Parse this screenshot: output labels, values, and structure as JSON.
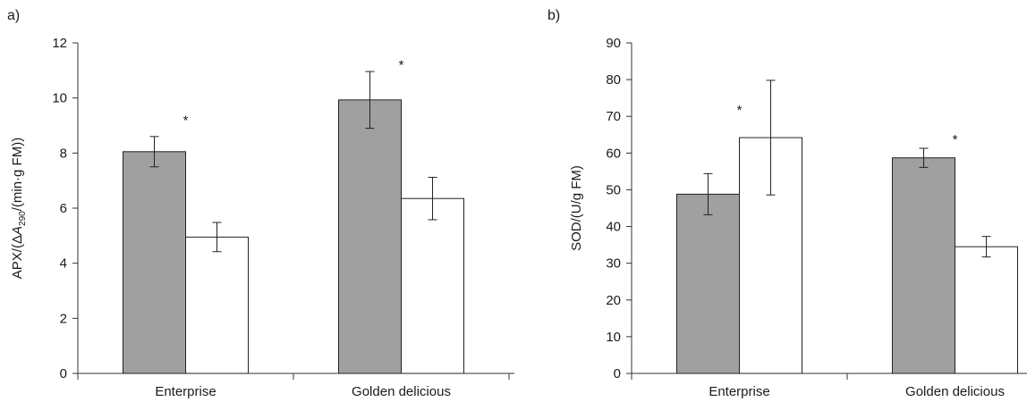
{
  "chart_data": [
    {
      "type": "bar",
      "panel_label": "a)",
      "ylabel_prefix": "APX/(Δ",
      "ylabel_var": "A",
      "ylabel_sub": "290",
      "ylabel_suffix": "/(min·g FM))",
      "categories": [
        "Enterprise",
        "Golden delicious"
      ],
      "series": [
        {
          "values": [
            8.05,
            9.93
          ],
          "errors": [
            0.55,
            1.03
          ],
          "color": "#a0a0a0"
        },
        {
          "values": [
            4.95,
            6.35
          ],
          "errors": [
            0.53,
            0.77
          ],
          "color": "#ffffff"
        }
      ],
      "ylim": [
        0,
        12
      ],
      "yticks": [
        0,
        2,
        4,
        6,
        8,
        10,
        12
      ],
      "significance": [
        {
          "category": 0,
          "value": 9.3,
          "label": "*"
        },
        {
          "category": 1,
          "value": 11.3,
          "label": "*"
        }
      ],
      "grid": false
    },
    {
      "type": "bar",
      "panel_label": "b)",
      "ylabel_prefix": "SOD/(U/g FM)",
      "ylabel_var": "",
      "ylabel_sub": "",
      "ylabel_suffix": "",
      "categories": [
        "Enterprise",
        "Golden delicious"
      ],
      "series": [
        {
          "values": [
            48.8,
            58.7
          ],
          "errors": [
            5.6,
            2.6
          ],
          "color": "#a0a0a0"
        },
        {
          "values": [
            64.2,
            34.5
          ],
          "errors": [
            15.6,
            2.8
          ],
          "color": "#ffffff"
        }
      ],
      "ylim": [
        0,
        90
      ],
      "yticks": [
        0,
        10,
        20,
        30,
        40,
        50,
        60,
        70,
        80,
        90
      ],
      "significance": [
        {
          "category": 0,
          "value": 72.5,
          "label": "*"
        },
        {
          "category": 1,
          "value": 64.5,
          "label": "*"
        }
      ],
      "grid": false
    }
  ]
}
